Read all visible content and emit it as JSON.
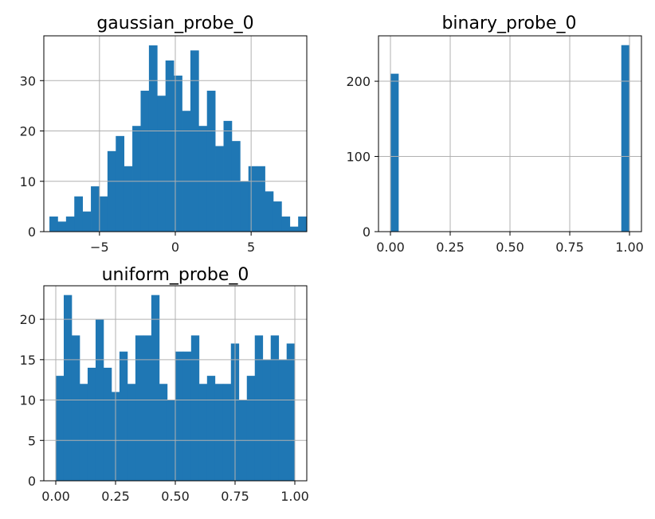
{
  "chart_data": [
    {
      "type": "bar",
      "title": "gaussian_probe_0",
      "xlabel": "",
      "ylabel": "",
      "bin_start": -8.3,
      "bin_width": 0.5467,
      "counts": [
        3,
        2,
        3,
        7,
        4,
        9,
        7,
        16,
        19,
        13,
        21,
        28,
        37,
        27,
        34,
        31,
        24,
        36,
        21,
        28,
        17,
        22,
        18,
        10,
        13,
        13,
        8,
        6,
        3,
        1,
        3
      ],
      "xlim": [
        -8.67,
        8.67
      ],
      "ylim": [
        0,
        38.9
      ],
      "x_ticks": [
        -5,
        0,
        5
      ],
      "x_tick_labels": [
        "−5",
        "0",
        "5"
      ],
      "y_ticks": [
        0,
        10,
        20,
        30
      ],
      "y_tick_labels": [
        "0",
        "10",
        "20",
        "30"
      ],
      "grid": true
    },
    {
      "type": "bar",
      "title": "binary_probe_0",
      "xlabel": "",
      "ylabel": "",
      "bin_start": 0,
      "bin_width": 0.0333,
      "counts": [
        210,
        0,
        0,
        0,
        0,
        0,
        0,
        0,
        0,
        0,
        0,
        0,
        0,
        0,
        0,
        0,
        0,
        0,
        0,
        0,
        0,
        0,
        0,
        0,
        0,
        0,
        0,
        0,
        0,
        248
      ],
      "xlim": [
        -0.05,
        1.05
      ],
      "ylim": [
        0,
        260.4
      ],
      "x_ticks": [
        0,
        0.25,
        0.5,
        0.75,
        1
      ],
      "x_tick_labels": [
        "0.00",
        "0.25",
        "0.50",
        "0.75",
        "1.00"
      ],
      "y_ticks": [
        0,
        100,
        200
      ],
      "y_tick_labels": [
        "0",
        "100",
        "200"
      ],
      "grid": true
    },
    {
      "type": "bar",
      "title": "uniform_probe_0",
      "xlabel": "",
      "ylabel": "",
      "bin_start": 0,
      "bin_width": 0.0333,
      "counts": [
        13,
        23,
        18,
        12,
        14,
        20,
        14,
        11,
        16,
        12,
        18,
        18,
        23,
        12,
        10,
        16,
        16,
        18,
        12,
        13,
        12,
        12,
        17,
        10,
        13,
        18,
        15,
        18,
        15,
        17
      ],
      "xlim": [
        -0.05,
        1.05
      ],
      "ylim": [
        0,
        24.15
      ],
      "x_ticks": [
        0,
        0.25,
        0.5,
        0.75,
        1
      ],
      "x_tick_labels": [
        "0.00",
        "0.25",
        "0.50",
        "0.75",
        "1.00"
      ],
      "y_ticks": [
        0,
        5,
        10,
        15,
        20
      ],
      "y_tick_labels": [
        "0",
        "5",
        "10",
        "15",
        "20"
      ],
      "grid": true
    }
  ],
  "colors": {
    "bar": "#1f77b4",
    "grid": "#b0b0b0",
    "axes": "#000000"
  }
}
